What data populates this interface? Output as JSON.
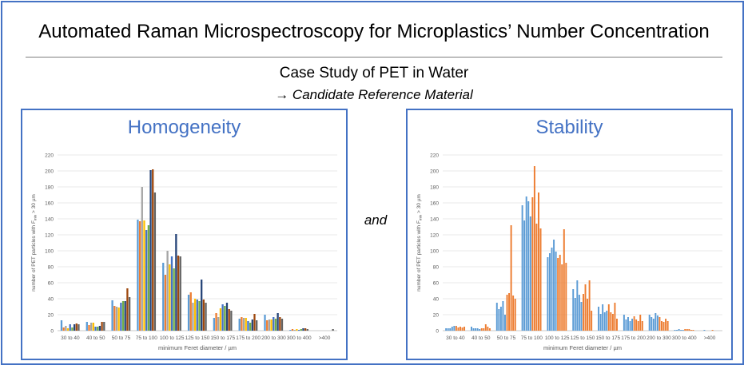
{
  "header": {
    "title": "Automated Raman Microspectroscopy for Microplastics’ Number Concentration",
    "subtitle": "Case Study of PET in Water",
    "subnote": "→  Candidate Reference Material"
  },
  "connector_text": "and",
  "colors": {
    "accent": "#4472c4",
    "homogeneity_series": [
      "#5b9bd5",
      "#ed7d31",
      "#a5a5a5",
      "#ffc000",
      "#4472c4",
      "#70ad47",
      "#264478",
      "#9e480e",
      "#636363"
    ],
    "stability_series": [
      "#5b9bd5",
      "#ed7d31"
    ]
  },
  "chart_data": [
    {
      "type": "bar",
      "panel_title": "Homogeneity",
      "categories": [
        "30 to 40",
        "40 to 50",
        "50 to 75",
        "75 to 100",
        "100 to 125",
        "125 to 150",
        "150 to 175",
        "175 to 200",
        "200 to 300",
        "300 to 400",
        ">400"
      ],
      "ylabel": "number of PET particles with F_min > 30 µm",
      "xlabel": "minimum Feret diameter / µm",
      "ylim": [
        0,
        220
      ],
      "yticks": [
        0,
        20,
        40,
        60,
        80,
        100,
        120,
        140,
        160,
        180,
        200,
        220
      ],
      "series": [
        {
          "values": [
            13,
            11,
            38,
            139,
            85,
            45,
            16,
            15,
            20,
            1,
            0
          ]
        },
        {
          "values": [
            4,
            7,
            31,
            137,
            70,
            48,
            22,
            17,
            13,
            2,
            0
          ]
        },
        {
          "values": [
            6,
            10,
            30,
            180,
            100,
            35,
            17,
            16,
            14,
            1,
            0
          ]
        },
        {
          "values": [
            3,
            10,
            29,
            138,
            83,
            40,
            28,
            16,
            14,
            2,
            0
          ]
        },
        {
          "values": [
            8,
            5,
            35,
            126,
            93,
            39,
            33,
            12,
            17,
            1,
            0
          ]
        },
        {
          "values": [
            4,
            5,
            37,
            132,
            78,
            37,
            31,
            10,
            15,
            2,
            0
          ]
        },
        {
          "values": [
            8,
            6,
            37,
            201,
            121,
            64,
            35,
            14,
            22,
            3,
            0
          ]
        },
        {
          "values": [
            9,
            11,
            53,
            202,
            94,
            39,
            27,
            21,
            17,
            3,
            0
          ]
        },
        {
          "values": [
            8,
            11,
            42,
            173,
            93,
            35,
            25,
            13,
            15,
            2,
            2
          ]
        }
      ]
    },
    {
      "type": "bar",
      "panel_title": "Stability",
      "categories": [
        "30 to 40",
        "40 to 50",
        "50 to 75",
        "75 to 100",
        "100 to 125",
        "125 to 150",
        "150 to 175",
        "175 to 200",
        "200 to 300",
        "300 to 400",
        ">400"
      ],
      "ylabel": "number of PET particles with F_min > 30 µm",
      "xlabel": "minimum Feret diameter / µm",
      "ylim": [
        0,
        220
      ],
      "yticks": [
        0,
        20,
        40,
        60,
        80,
        100,
        120,
        140,
        160,
        180,
        200,
        220
      ],
      "series": [
        {
          "values": [
            [
              3,
              3,
              3,
              5,
              6
            ],
            [
              5,
              3,
              3,
              3,
              2
            ],
            [
              35,
              27,
              30,
              37,
              20
            ],
            [
              157,
              138,
              168,
              162,
              143
            ],
            [
              92,
              97,
              104,
              114,
              99
            ],
            [
              52,
              41,
              63,
              45,
              36
            ],
            [
              30,
              21,
              33,
              23,
              25
            ],
            [
              20,
              14,
              17,
              12,
              15
            ],
            [
              20,
              17,
              15,
              22,
              19
            ],
            [
              1,
              1,
              2,
              1,
              1
            ],
            [
              0,
              0,
              1,
              0,
              0
            ]
          ]
        },
        {
          "values": [
            [
              6,
              4,
              5,
              4,
              5
            ],
            [
              3,
              3,
              8,
              5,
              3
            ],
            [
              45,
              47,
              132,
              44,
              40
            ],
            [
              167,
              206,
              134,
              173,
              128
            ],
            [
              91,
              95,
              83,
              127,
              85
            ],
            [
              46,
              58,
              40,
              63,
              25
            ],
            [
              33,
              23,
              21,
              35,
              15
            ],
            [
              18,
              14,
              12,
              20,
              12
            ],
            [
              17,
              12,
              11,
              15,
              12
            ],
            [
              2,
              2,
              2,
              1,
              1
            ],
            [
              0,
              1,
              0,
              0,
              0
            ]
          ]
        }
      ]
    }
  ]
}
